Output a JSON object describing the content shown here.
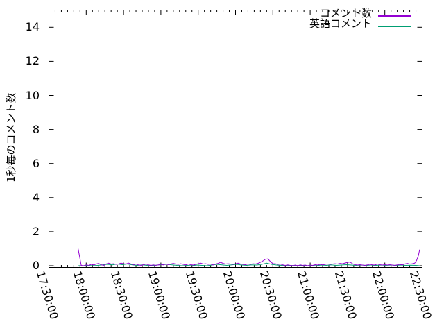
{
  "chart_data": {
    "type": "line",
    "title": "",
    "xlabel": "",
    "ylabel": "1秒毎のコメント数",
    "grid": false,
    "legend_position": "top-right-inside",
    "frame_color": "#000000",
    "x_axis": {
      "start": "17:30:00",
      "end": "22:30:00",
      "major_tick_interval_minutes": 30,
      "minor_tick_interval_minutes": 5,
      "label_rotation_deg": 73,
      "tick_labels": [
        "17:30:00",
        "18:00:00",
        "18:30:00",
        "19:00:00",
        "19:30:00",
        "20:00:00",
        "20:30:00",
        "21:00:00",
        "21:30:00",
        "22:00:00",
        "22:30:00"
      ]
    },
    "y_axis": {
      "min": 0,
      "max": 15,
      "tick_step": 2,
      "ticks": [
        0,
        2,
        4,
        6,
        8,
        10,
        12,
        14
      ]
    },
    "series": [
      {
        "name": "コメント数",
        "color": "#9400d3",
        "points": [
          [
            "17:53:30",
            1.0
          ],
          [
            "17:56:00",
            0.02
          ],
          [
            "17:58:00",
            0
          ],
          [
            "18:00:00",
            0.05
          ],
          [
            "18:02:00",
            0.02
          ],
          [
            "18:04:00",
            0.08
          ],
          [
            "18:06:00",
            0.05
          ],
          [
            "18:08:00",
            0.1
          ],
          [
            "18:10:00",
            0.14
          ],
          [
            "18:12:00",
            0.06
          ],
          [
            "18:14:00",
            0.02
          ],
          [
            "18:16:00",
            0.1
          ],
          [
            "18:18:00",
            0.15
          ],
          [
            "18:20:00",
            0.1
          ],
          [
            "18:22:00",
            0.12
          ],
          [
            "18:24:00",
            0.08
          ],
          [
            "18:26:00",
            0.1
          ],
          [
            "18:28:00",
            0.16
          ],
          [
            "18:30:00",
            0.12
          ],
          [
            "18:32:00",
            0.1
          ],
          [
            "18:34:00",
            0.16
          ],
          [
            "18:36:00",
            0.1
          ],
          [
            "18:38:00",
            0.06
          ],
          [
            "18:40:00",
            0.1
          ],
          [
            "18:42:00",
            0.05
          ],
          [
            "18:44:00",
            0.02
          ],
          [
            "18:46:00",
            0.06
          ],
          [
            "18:48:00",
            0.1
          ],
          [
            "18:50:00",
            0.05
          ],
          [
            "18:52:00",
            0.02
          ],
          [
            "18:54:00",
            0.05
          ],
          [
            "18:56:00",
            0.02
          ],
          [
            "18:58:00",
            0.05
          ],
          [
            "19:00:00",
            0.08
          ],
          [
            "19:02:00",
            0.05
          ],
          [
            "19:04:00",
            0.1
          ],
          [
            "19:06:00",
            0.06
          ],
          [
            "19:08:00",
            0.1
          ],
          [
            "19:10:00",
            0.14
          ],
          [
            "19:12:00",
            0.1
          ],
          [
            "19:14:00",
            0.08
          ],
          [
            "19:16:00",
            0.12
          ],
          [
            "19:18:00",
            0.08
          ],
          [
            "19:20:00",
            0.05
          ],
          [
            "19:22:00",
            0.1
          ],
          [
            "19:24:00",
            0.06
          ],
          [
            "19:26:00",
            0.04
          ],
          [
            "19:28:00",
            0.08
          ],
          [
            "19:30:00",
            0.12
          ],
          [
            "19:32:00",
            0.15
          ],
          [
            "19:34:00",
            0.1
          ],
          [
            "19:36:00",
            0.12
          ],
          [
            "19:38:00",
            0.08
          ],
          [
            "19:40:00",
            0.1
          ],
          [
            "19:42:00",
            0.05
          ],
          [
            "19:44:00",
            0.1
          ],
          [
            "19:46:00",
            0.14
          ],
          [
            "19:48:00",
            0.2
          ],
          [
            "19:50:00",
            0.14
          ],
          [
            "19:52:00",
            0.1
          ],
          [
            "19:54:00",
            0.12
          ],
          [
            "19:56:00",
            0.1
          ],
          [
            "19:58:00",
            0.08
          ],
          [
            "20:00:00",
            0.12
          ],
          [
            "20:02:00",
            0.15
          ],
          [
            "20:04:00",
            0.1
          ],
          [
            "20:06:00",
            0.08
          ],
          [
            "20:08:00",
            0.06
          ],
          [
            "20:10:00",
            0.1
          ],
          [
            "20:12:00",
            0.08
          ],
          [
            "20:14:00",
            0.12
          ],
          [
            "20:16:00",
            0.1
          ],
          [
            "20:18:00",
            0.14
          ],
          [
            "20:20:00",
            0.2
          ],
          [
            "20:22:00",
            0.28
          ],
          [
            "20:24:00",
            0.38
          ],
          [
            "20:26:00",
            0.4
          ],
          [
            "20:28:00",
            0.25
          ],
          [
            "20:30:00",
            0.12
          ],
          [
            "20:32:00",
            0.12
          ],
          [
            "20:34:00",
            0.08
          ],
          [
            "20:36:00",
            0.1
          ],
          [
            "20:38:00",
            0.05
          ],
          [
            "20:40:00",
            0.02
          ],
          [
            "20:42:00",
            0.05
          ],
          [
            "20:44:00",
            0.02
          ],
          [
            "20:46:00",
            0
          ],
          [
            "20:48:00",
            0.04
          ],
          [
            "20:50:00",
            0
          ],
          [
            "20:52:00",
            0.05
          ],
          [
            "20:54:00",
            0.02
          ],
          [
            "20:56:00",
            0.04
          ],
          [
            "20:58:00",
            0
          ],
          [
            "21:00:00",
            0.04
          ],
          [
            "21:02:00",
            0.02
          ],
          [
            "21:04:00",
            0.06
          ],
          [
            "21:06:00",
            0.04
          ],
          [
            "21:08:00",
            0.08
          ],
          [
            "21:10:00",
            0.05
          ],
          [
            "21:12:00",
            0.08
          ],
          [
            "21:14:00",
            0.1
          ],
          [
            "21:16:00",
            0.08
          ],
          [
            "21:18:00",
            0.1
          ],
          [
            "21:20:00",
            0.12
          ],
          [
            "21:22:00",
            0.1
          ],
          [
            "21:24:00",
            0.14
          ],
          [
            "21:26:00",
            0.12
          ],
          [
            "21:28:00",
            0.16
          ],
          [
            "21:30:00",
            0.2
          ],
          [
            "21:32:00",
            0.22
          ],
          [
            "21:34:00",
            0.12
          ],
          [
            "21:36:00",
            0.06
          ],
          [
            "21:38:00",
            0.04
          ],
          [
            "21:40:00",
            0.06
          ],
          [
            "21:42:00",
            0.04
          ],
          [
            "21:44:00",
            0.02
          ],
          [
            "21:46:00",
            0.05
          ],
          [
            "21:48:00",
            0.08
          ],
          [
            "21:50:00",
            0.05
          ],
          [
            "21:52:00",
            0.04
          ],
          [
            "21:54:00",
            0.1
          ],
          [
            "21:56:00",
            0.06
          ],
          [
            "21:58:00",
            0.04
          ],
          [
            "22:00:00",
            0.06
          ],
          [
            "22:02:00",
            0.04
          ],
          [
            "22:04:00",
            0.06
          ],
          [
            "22:06:00",
            0.04
          ],
          [
            "22:08:00",
            0.02
          ],
          [
            "22:10:00",
            0.05
          ],
          [
            "22:12:00",
            0.08
          ],
          [
            "22:14:00",
            0.05
          ],
          [
            "22:16:00",
            0.1
          ],
          [
            "22:18:00",
            0.14
          ],
          [
            "22:20:00",
            0.1
          ],
          [
            "22:22:00",
            0.12
          ],
          [
            "22:24:00",
            0.15
          ],
          [
            "22:25:30",
            0.3
          ],
          [
            "22:27:00",
            0.6
          ],
          [
            "22:28:00",
            0.95
          ]
        ]
      },
      {
        "name": "英語コメント",
        "color": "#009e73",
        "points": [
          [
            "17:53:30",
            0
          ],
          [
            "17:57:00",
            0
          ],
          [
            "18:01:00",
            0.02
          ],
          [
            "18:05:00",
            0
          ],
          [
            "18:09:00",
            0.02
          ],
          [
            "18:13:00",
            0.05
          ],
          [
            "18:17:00",
            0.08
          ],
          [
            "18:21:00",
            0.05
          ],
          [
            "18:25:00",
            0.1
          ],
          [
            "18:29:00",
            0.06
          ],
          [
            "18:33:00",
            0.1
          ],
          [
            "18:37:00",
            0.05
          ],
          [
            "18:41:00",
            0.02
          ],
          [
            "18:45:00",
            0.05
          ],
          [
            "18:49:00",
            0.02
          ],
          [
            "18:53:00",
            0
          ],
          [
            "18:57:00",
            0.04
          ],
          [
            "19:01:00",
            0.06
          ],
          [
            "19:05:00",
            0.08
          ],
          [
            "19:09:00",
            0.05
          ],
          [
            "19:13:00",
            0.02
          ],
          [
            "19:17:00",
            0
          ],
          [
            "19:21:00",
            0.02
          ],
          [
            "19:25:00",
            0
          ],
          [
            "19:29:00",
            0.04
          ],
          [
            "19:33:00",
            0.02
          ],
          [
            "19:37:00",
            0
          ],
          [
            "19:41:00",
            0.04
          ],
          [
            "19:45:00",
            0.08
          ],
          [
            "19:49:00",
            0.05
          ],
          [
            "19:53:00",
            0.02
          ],
          [
            "19:57:00",
            0.05
          ],
          [
            "20:01:00",
            0.08
          ],
          [
            "20:05:00",
            0.04
          ],
          [
            "20:09:00",
            0.02
          ],
          [
            "20:13:00",
            0.05
          ],
          [
            "20:17:00",
            0.04
          ],
          [
            "20:21:00",
            0.08
          ],
          [
            "20:25:00",
            0.15
          ],
          [
            "20:29:00",
            0.08
          ],
          [
            "20:33:00",
            0.04
          ],
          [
            "20:37:00",
            0.02
          ],
          [
            "20:41:00",
            0
          ],
          [
            "20:45:00",
            0.02
          ],
          [
            "20:49:00",
            0
          ],
          [
            "20:53:00",
            0.02
          ],
          [
            "20:57:00",
            0
          ],
          [
            "21:01:00",
            0.02
          ],
          [
            "21:05:00",
            0
          ],
          [
            "21:09:00",
            0.04
          ],
          [
            "21:13:00",
            0.02
          ],
          [
            "21:17:00",
            0.05
          ],
          [
            "21:21:00",
            0.02
          ],
          [
            "21:25:00",
            0.04
          ],
          [
            "21:29:00",
            0.06
          ],
          [
            "21:33:00",
            0.04
          ],
          [
            "21:37:00",
            0.02
          ],
          [
            "21:41:00",
            0.04
          ],
          [
            "21:45:00",
            0.02
          ],
          [
            "21:49:00",
            0
          ],
          [
            "21:53:00",
            0.02
          ],
          [
            "21:57:00",
            0.04
          ],
          [
            "22:01:00",
            0.02
          ],
          [
            "22:05:00",
            0.04
          ],
          [
            "22:09:00",
            0.02
          ],
          [
            "22:13:00",
            0.04
          ],
          [
            "22:17:00",
            0.02
          ],
          [
            "22:21:00",
            0.03
          ],
          [
            "22:25:00",
            0.02
          ],
          [
            "22:28:00",
            0
          ]
        ]
      }
    ]
  }
}
